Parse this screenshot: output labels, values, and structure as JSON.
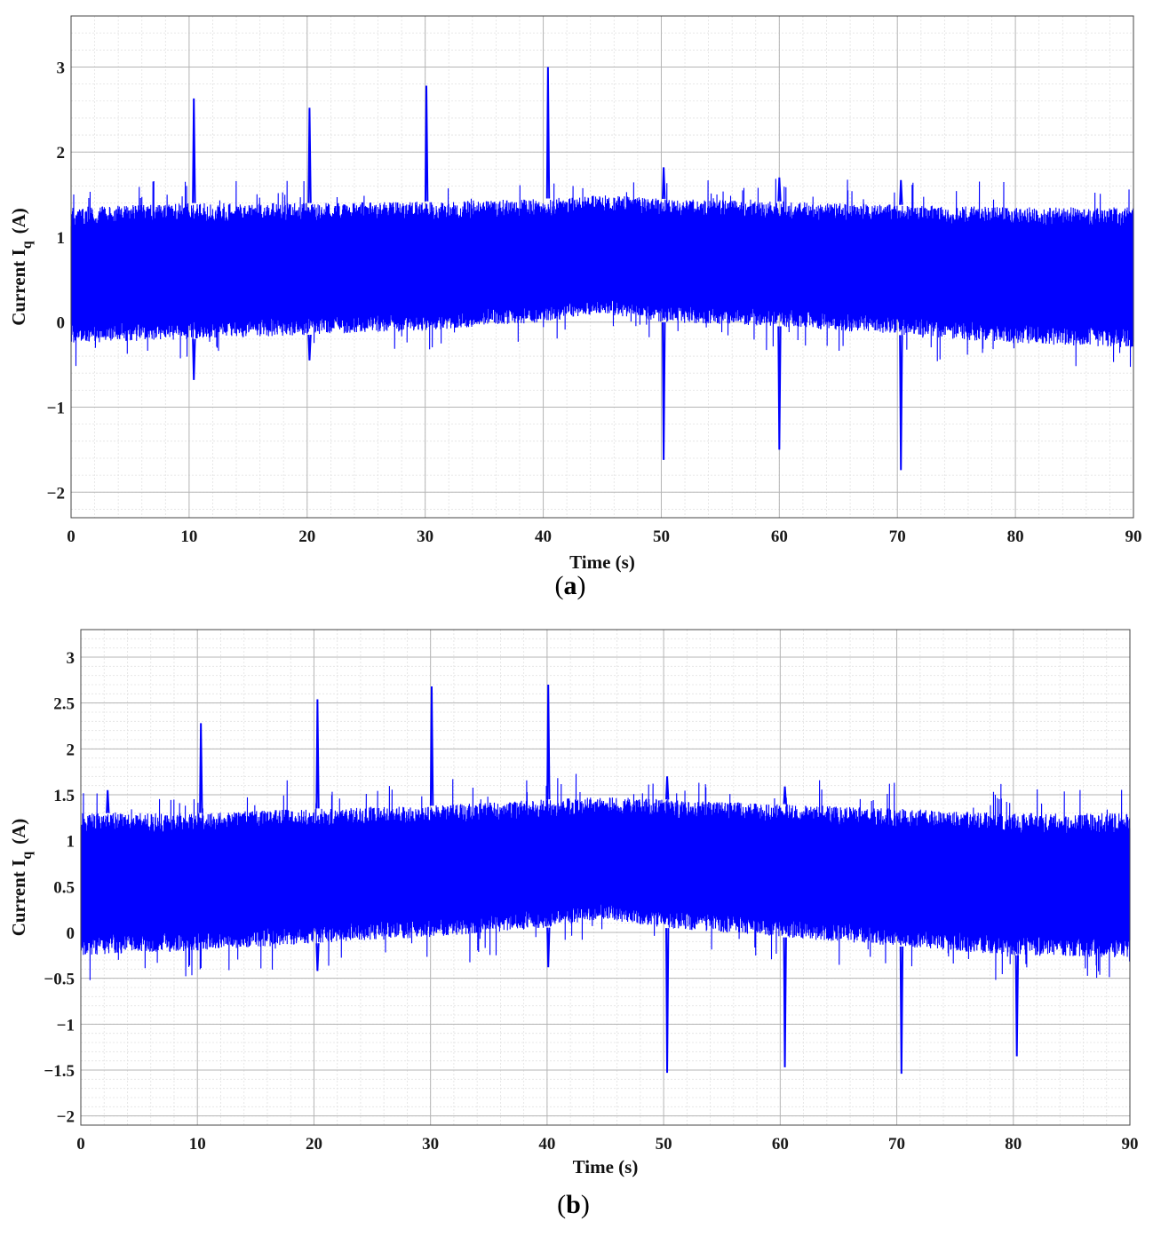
{
  "chart_data": [
    {
      "type": "line",
      "panel_label": "a",
      "xlabel": "Time (s)",
      "ylabel_main": "Current I",
      "ylabel_sub": "q",
      "ylabel_unit": "(A)",
      "xlim": [
        0,
        90
      ],
      "ylim": [
        -2.3,
        3.6
      ],
      "xticks": [
        0,
        10,
        20,
        30,
        40,
        50,
        60,
        70,
        80,
        90
      ],
      "yticks": [
        -2,
        -1,
        0,
        1,
        2,
        3
      ],
      "ytick_labels": [
        "−2",
        "−1",
        "0",
        "1",
        "2",
        "3"
      ],
      "grid": true,
      "minor_grid": true,
      "color": "#0000ff",
      "band": {
        "x": [
          0,
          10,
          20,
          30,
          40,
          45,
          50,
          60,
          70,
          80,
          90
        ],
        "upper": [
          1.35,
          1.4,
          1.4,
          1.42,
          1.45,
          1.5,
          1.45,
          1.42,
          1.38,
          1.35,
          1.35
        ],
        "lower": [
          -0.25,
          -0.2,
          -0.15,
          -0.1,
          0.0,
          0.1,
          0.0,
          -0.05,
          -0.15,
          -0.25,
          -0.3
        ]
      },
      "spikes": [
        {
          "x": 10.4,
          "y": 2.63
        },
        {
          "x": 10.4,
          "y": -0.68
        },
        {
          "x": 20.2,
          "y": 2.52
        },
        {
          "x": 20.2,
          "y": -0.45
        },
        {
          "x": 30.1,
          "y": 2.78
        },
        {
          "x": 40.4,
          "y": 3.0
        },
        {
          "x": 50.2,
          "y": 1.82
        },
        {
          "x": 50.2,
          "y": -1.62
        },
        {
          "x": 60.0,
          "y": 1.7
        },
        {
          "x": 60.0,
          "y": -1.5
        },
        {
          "x": 70.3,
          "y": 1.67
        },
        {
          "x": 70.3,
          "y": -1.74
        }
      ]
    },
    {
      "type": "line",
      "panel_label": "b",
      "xlabel": "Time (s)",
      "ylabel_main": "Current I",
      "ylabel_sub": "q",
      "ylabel_unit": "(A)",
      "xlim": [
        0,
        90
      ],
      "ylim": [
        -2.1,
        3.3
      ],
      "xticks": [
        0,
        10,
        20,
        30,
        40,
        50,
        60,
        70,
        80,
        90
      ],
      "yticks": [
        -2,
        -1.5,
        -1,
        -0.5,
        0,
        0.5,
        1,
        1.5,
        2,
        2.5,
        3
      ],
      "ytick_labels": [
        "−2",
        "−1.5",
        "−1",
        "−0.5",
        "0",
        "0.5",
        "1",
        "1.5",
        "2",
        "2.5",
        "3"
      ],
      "grid": true,
      "minor_grid": true,
      "color": "#0000ff",
      "band": {
        "x": [
          0,
          10,
          20,
          30,
          40,
          45,
          50,
          60,
          70,
          80,
          90
        ],
        "upper": [
          1.3,
          1.3,
          1.35,
          1.38,
          1.45,
          1.48,
          1.45,
          1.4,
          1.35,
          1.3,
          1.3
        ],
        "lower": [
          -0.25,
          -0.2,
          -0.12,
          -0.05,
          0.05,
          0.15,
          0.05,
          -0.05,
          -0.15,
          -0.25,
          -0.28
        ]
      },
      "spikes": [
        {
          "x": 2.3,
          "y": 1.55
        },
        {
          "x": 10.3,
          "y": 2.28
        },
        {
          "x": 20.3,
          "y": 2.54
        },
        {
          "x": 20.3,
          "y": -0.42
        },
        {
          "x": 30.1,
          "y": 2.68
        },
        {
          "x": 40.1,
          "y": 2.7
        },
        {
          "x": 40.1,
          "y": -0.38
        },
        {
          "x": 50.3,
          "y": 1.7
        },
        {
          "x": 50.3,
          "y": -1.53
        },
        {
          "x": 60.4,
          "y": 1.59
        },
        {
          "x": 60.4,
          "y": -1.47
        },
        {
          "x": 70.4,
          "y": -1.54
        },
        {
          "x": 80.3,
          "y": -1.35
        }
      ]
    }
  ]
}
